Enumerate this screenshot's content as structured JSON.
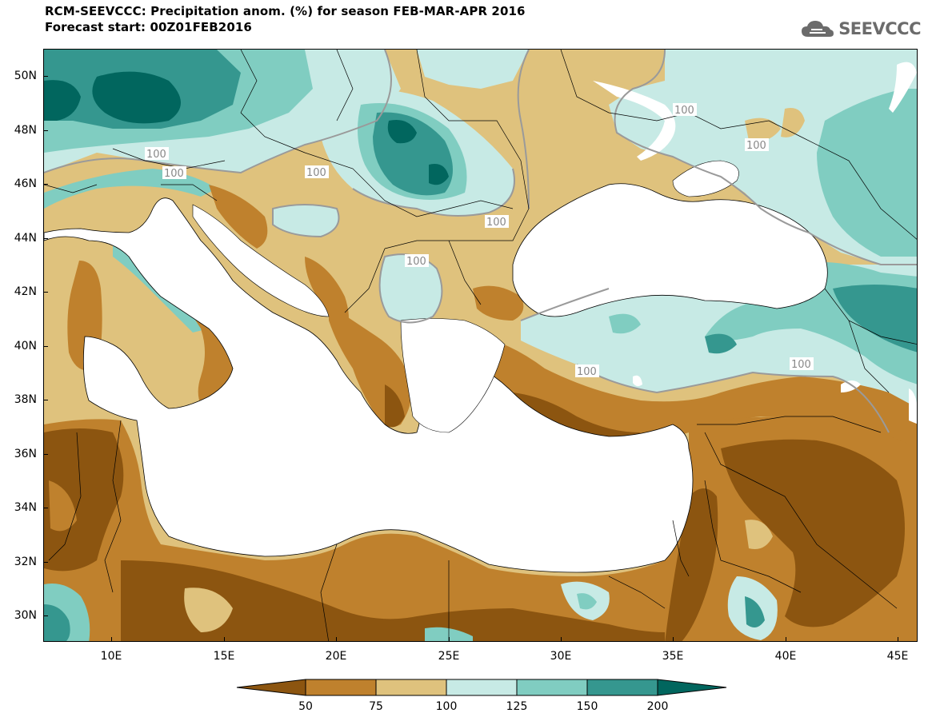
{
  "title": {
    "line1": "RCM-SEEVCCC: Precipitation anom. (%) for season FEB-MAR-APR 2016",
    "line2": "Forecast start: 00Z01FEB2016"
  },
  "logo": {
    "text": "SEEVCCC",
    "icon": "cloud-icon"
  },
  "map": {
    "lat_labels": [
      "50N",
      "48N",
      "46N",
      "44N",
      "42N",
      "40N",
      "38N",
      "36N",
      "34N",
      "32N",
      "30N"
    ],
    "lon_labels": [
      "10E",
      "15E",
      "20E",
      "25E",
      "30E",
      "35E",
      "40E",
      "45E"
    ],
    "contour_label": "100",
    "ocean_color": "#ffffff"
  },
  "colorbar": {
    "labels": [
      "50",
      "75",
      "100",
      "125",
      "150",
      "200"
    ],
    "colors": [
      "#8c5510",
      "#bf812d",
      "#dfc27d",
      "#c7eae5",
      "#80cdc1",
      "#35978f",
      "#01665e"
    ]
  }
}
